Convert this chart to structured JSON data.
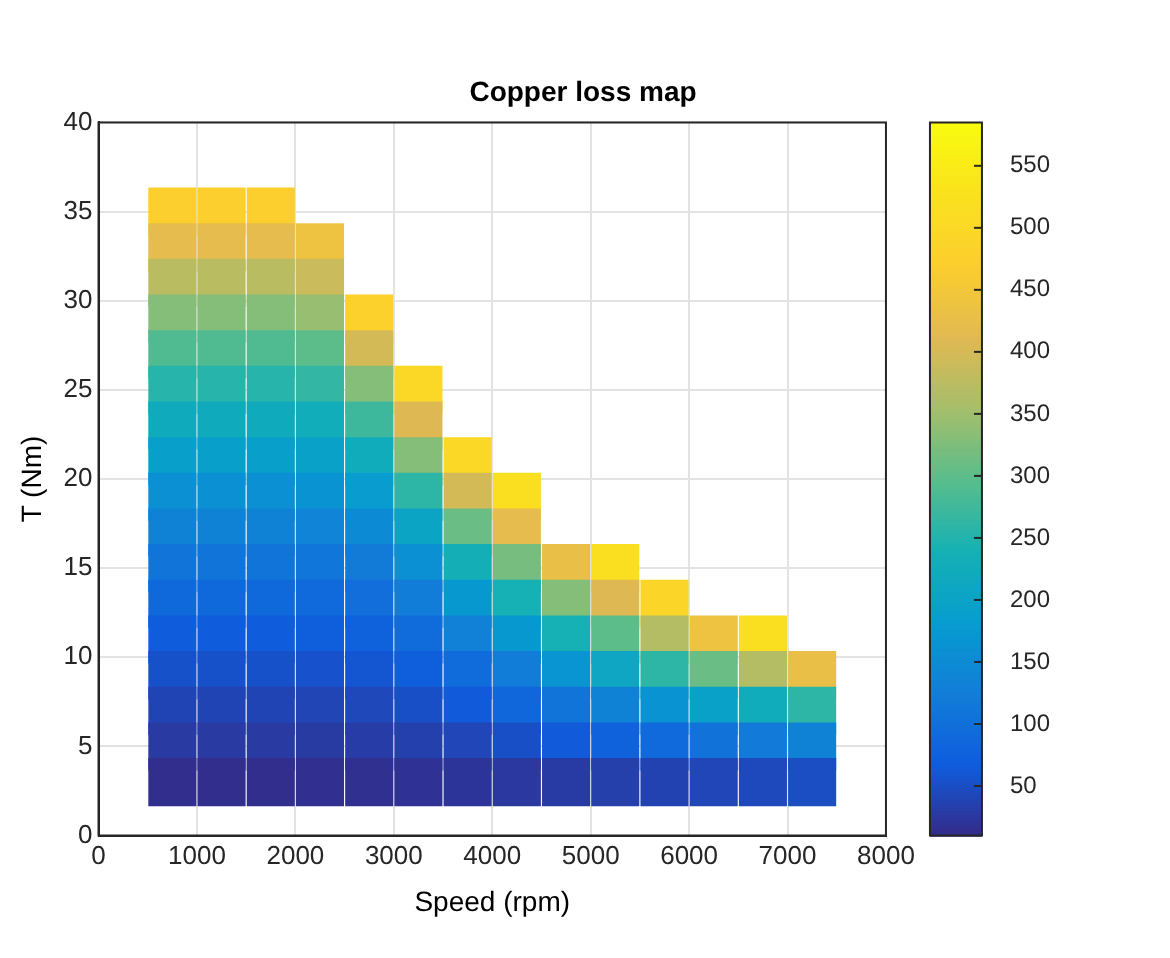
{
  "chart_data": {
    "type": "scatter",
    "title": "Copper loss map",
    "xlabel": "Speed (rpm)",
    "ylabel": "T (Nm)",
    "x": [
      750,
      750,
      750,
      750,
      750,
      750,
      750,
      750,
      750,
      750,
      750,
      750,
      750,
      750,
      750,
      750,
      750,
      1250,
      1250,
      1250,
      1250,
      1250,
      1250,
      1250,
      1250,
      1250,
      1250,
      1250,
      1250,
      1250,
      1250,
      1250,
      1250,
      1250,
      1750,
      1750,
      1750,
      1750,
      1750,
      1750,
      1750,
      1750,
      1750,
      1750,
      1750,
      1750,
      1750,
      1750,
      1750,
      1750,
      1750,
      2250,
      2250,
      2250,
      2250,
      2250,
      2250,
      2250,
      2250,
      2250,
      2250,
      2250,
      2250,
      2250,
      2250,
      2250,
      2250,
      2750,
      2750,
      2750,
      2750,
      2750,
      2750,
      2750,
      2750,
      2750,
      2750,
      2750,
      2750,
      2750,
      2750,
      3250,
      3250,
      3250,
      3250,
      3250,
      3250,
      3250,
      3250,
      3250,
      3250,
      3250,
      3250,
      3750,
      3750,
      3750,
      3750,
      3750,
      3750,
      3750,
      3750,
      3750,
      3750,
      4250,
      4250,
      4250,
      4250,
      4250,
      4250,
      4250,
      4250,
      4250,
      4750,
      4750,
      4750,
      4750,
      4750,
      4750,
      4750,
      5250,
      5250,
      5250,
      5250,
      5250,
      5250,
      5250,
      5750,
      5750,
      5750,
      5750,
      5750,
      5750,
      6250,
      6250,
      6250,
      6250,
      6250,
      6750,
      6750,
      6750,
      6750,
      6750,
      7250,
      7250,
      7250,
      7250
    ],
    "values": [
      35,
      33,
      31,
      29,
      27,
      25,
      23,
      21,
      19,
      17,
      15,
      13,
      11,
      9,
      7,
      5,
      3,
      35,
      33,
      31,
      29,
      27,
      25,
      23,
      21,
      19,
      17,
      15,
      13,
      11,
      9,
      7,
      5,
      3,
      35,
      33,
      31,
      29,
      27,
      25,
      23,
      21,
      19,
      17,
      15,
      13,
      11,
      9,
      7,
      5,
      3,
      33,
      31,
      29,
      27,
      25,
      23,
      21,
      19,
      17,
      15,
      13,
      11,
      9,
      7,
      5,
      3,
      29,
      27,
      25,
      23,
      21,
      19,
      17,
      15,
      13,
      11,
      9,
      7,
      5,
      3,
      25,
      23,
      21,
      19,
      17,
      15,
      13,
      11,
      9,
      7,
      5,
      3,
      21,
      19,
      17,
      15,
      13,
      11,
      9,
      7,
      5,
      3,
      19,
      17,
      15,
      13,
      11,
      9,
      7,
      5,
      3,
      15,
      13,
      11,
      9,
      7,
      5,
      3,
      15,
      13,
      11,
      9,
      7,
      5,
      3,
      13,
      11,
      9,
      7,
      5,
      3,
      11,
      9,
      7,
      5,
      3,
      11,
      9,
      7,
      5,
      3,
      9,
      7,
      5,
      3
    ],
    "cvalues": [
      470,
      420,
      375,
      330,
      290,
      255,
      220,
      190,
      160,
      135,
      110,
      90,
      70,
      55,
      40,
      28,
      15,
      470,
      420,
      375,
      330,
      290,
      255,
      220,
      190,
      160,
      135,
      110,
      90,
      70,
      55,
      40,
      28,
      15,
      470,
      420,
      375,
      330,
      290,
      255,
      220,
      190,
      160,
      135,
      110,
      90,
      70,
      55,
      40,
      28,
      15,
      440,
      390,
      345,
      300,
      265,
      228,
      195,
      165,
      138,
      113,
      92,
      72,
      56,
      41,
      29,
      16,
      480,
      400,
      330,
      275,
      225,
      185,
      150,
      122,
      98,
      77,
      60,
      44,
      31,
      17,
      500,
      410,
      330,
      260,
      205,
      160,
      125,
      95,
      72,
      52,
      35,
      19,
      500,
      400,
      310,
      235,
      175,
      130,
      95,
      65,
      42,
      22,
      520,
      420,
      320,
      240,
      175,
      125,
      85,
      52,
      26,
      430,
      330,
      240,
      170,
      110,
      65,
      30,
      520,
      410,
      300,
      210,
      135,
      78,
      34,
      490,
      370,
      260,
      165,
      92,
      38,
      440,
      310,
      195,
      105,
      42,
      520,
      370,
      225,
      120,
      46,
      430,
      260,
      135,
      50
    ],
    "marker": "square",
    "xlim": [
      0,
      8000
    ],
    "xticks": [
      0,
      1000,
      2000,
      3000,
      4000,
      5000,
      6000,
      7000,
      8000
    ],
    "ylim": [
      0,
      40
    ],
    "yticks": [
      0,
      5,
      10,
      15,
      20,
      25,
      30,
      35,
      40
    ],
    "clim": [
      10,
      585
    ],
    "cticks": [
      50,
      100,
      150,
      200,
      250,
      300,
      350,
      400,
      450,
      500,
      550
    ],
    "grid": true
  }
}
